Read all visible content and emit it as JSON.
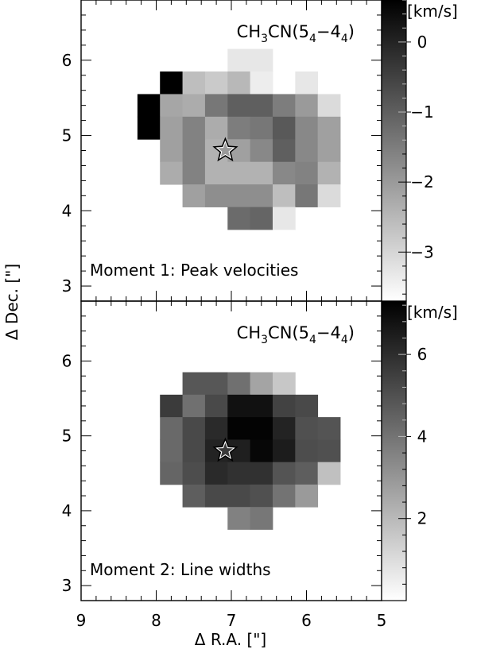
{
  "axes": {
    "xlabel": "Δ R.A. [\"]",
    "ylabel": "Δ Dec. [\"]",
    "xlim": [
      9,
      5
    ],
    "ylim": [
      2.8,
      6.8
    ],
    "xticks": [
      "9",
      "8",
      "7",
      "6",
      "5"
    ],
    "yticks": [
      "3",
      "4",
      "5",
      "6"
    ]
  },
  "chart_data": [
    {
      "type": "heatmap",
      "title_main": "CH",
      "title_sub1": "3",
      "title_mid": "CN(5",
      "title_sub2": "4",
      "title_dash": "−4",
      "title_sub3": "4",
      "title_close": ")",
      "annotation": "Moment 1: Peak velocities",
      "colorbar_unit": "[km/s]",
      "colorbar_ticks": [
        "0",
        "−1",
        "−2",
        "−3"
      ],
      "colorbar_tick_values": [
        0,
        -1,
        -2,
        -3
      ],
      "colorbar_range": [
        -3.7,
        0.6
      ],
      "cell_size": 0.3,
      "x_centers": [
        8.1,
        7.8,
        7.5,
        7.2,
        6.9,
        6.6,
        6.3,
        6.0,
        5.7
      ],
      "y_centers": [
        6.0,
        5.7,
        5.4,
        5.1,
        4.8,
        4.5,
        4.2,
        3.9
      ],
      "values": [
        [
          null,
          null,
          null,
          null,
          -3.3,
          -3.3,
          null,
          null,
          null
        ],
        [
          null,
          0.6,
          -2.6,
          -2.8,
          -2.5,
          -3.4,
          null,
          -3.3,
          null
        ],
        [
          0.6,
          -2.2,
          -2.3,
          -1.4,
          -1.0,
          -1.0,
          -1.5,
          -2.0,
          -3.1
        ],
        [
          0.6,
          -2.1,
          -1.6,
          -2.3,
          -1.5,
          -1.4,
          -0.9,
          -1.7,
          -2.1
        ],
        [
          null,
          -2.1,
          -1.6,
          -2.4,
          -2.1,
          -1.7,
          -1.0,
          -1.7,
          -2.1
        ],
        [
          null,
          -2.3,
          -1.6,
          -2.4,
          -2.4,
          -2.4,
          -1.7,
          -1.6,
          -2.4
        ],
        [
          null,
          null,
          -2.1,
          -1.8,
          -1.8,
          -1.8,
          -2.6,
          -1.4,
          -3.1
        ],
        [
          null,
          null,
          null,
          null,
          -1.2,
          -1.1,
          -3.3,
          null,
          null
        ]
      ],
      "star": {
        "x": 7.08,
        "y": 4.8
      }
    },
    {
      "type": "heatmap",
      "title_main": "CH",
      "title_sub1": "3",
      "title_mid": "CN(5",
      "title_sub2": "4",
      "title_dash": "−4",
      "title_sub3": "4",
      "title_close": ")",
      "annotation": "Moment 2: Line widths",
      "colorbar_unit": "[km/s]",
      "colorbar_ticks": [
        "6",
        "4",
        "2"
      ],
      "colorbar_tick_values": [
        6,
        4,
        2
      ],
      "colorbar_range": [
        0,
        7.3
      ],
      "cell_size": 0.3,
      "x_centers": [
        7.8,
        7.5,
        7.2,
        6.9,
        6.6,
        6.3,
        6.0,
        5.7
      ],
      "y_centers": [
        5.7,
        5.4,
        5.1,
        4.8,
        4.5,
        4.2,
        3.9
      ],
      "values": [
        [
          null,
          4.8,
          4.8,
          4.1,
          2.6,
          1.6,
          null,
          null
        ],
        [
          5.6,
          4.1,
          5.2,
          6.8,
          6.8,
          5.4,
          5.2,
          null
        ],
        [
          4.3,
          5.2,
          6.1,
          7.2,
          7.2,
          6.3,
          5.0,
          4.9
        ],
        [
          4.3,
          5.2,
          6.3,
          6.4,
          7.1,
          6.5,
          5.1,
          5.0
        ],
        [
          4.4,
          5.1,
          6.1,
          5.9,
          5.9,
          4.9,
          4.6,
          1.8
        ],
        [
          null,
          4.6,
          5.2,
          5.2,
          5.0,
          4.0,
          2.9,
          null
        ],
        [
          null,
          null,
          null,
          3.6,
          3.9,
          null,
          null,
          null
        ]
      ],
      "star": {
        "x": 7.08,
        "y": 4.8
      }
    }
  ]
}
